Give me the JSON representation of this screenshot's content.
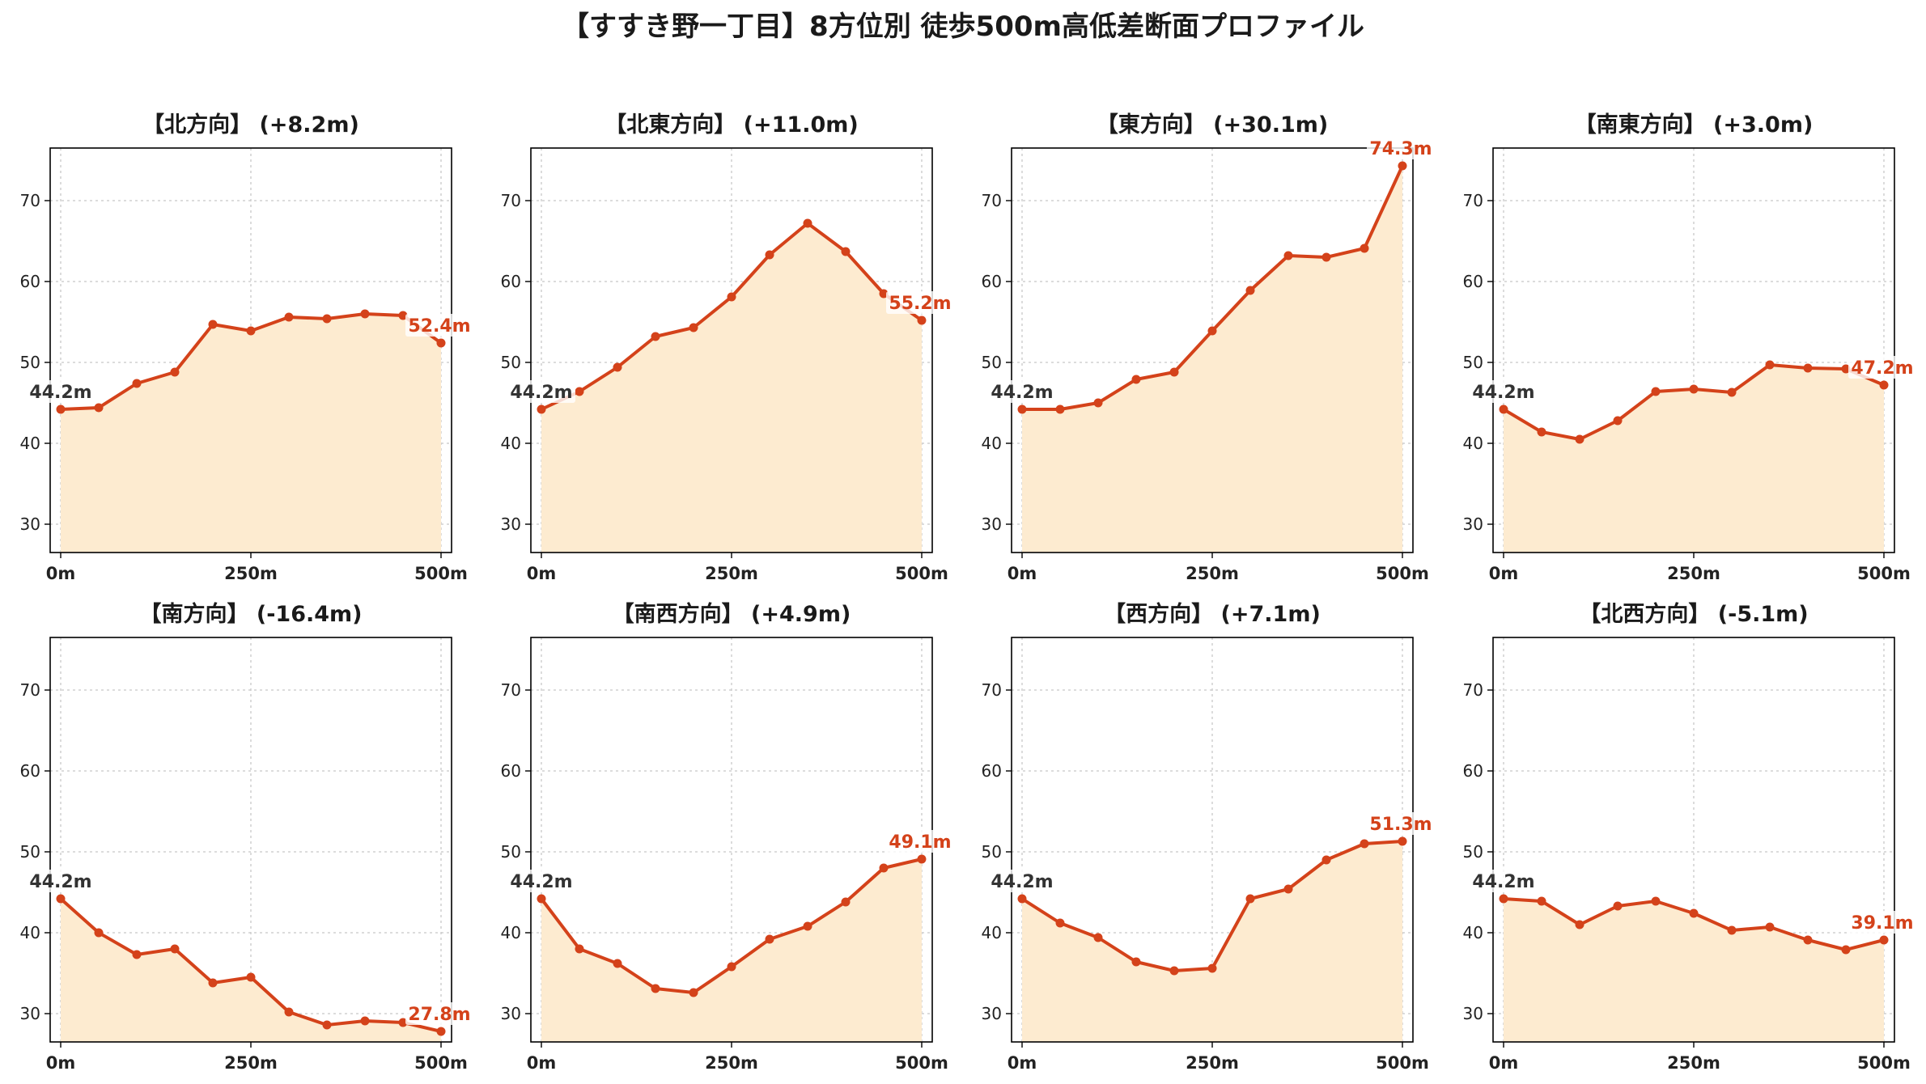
{
  "figure_title": "【すすき野一丁目】8方位別 徒歩500m高低差断面プロファイル",
  "colors": {
    "line": "#d4421a",
    "fill": "#fdebd0",
    "grid": "#c8c8c8",
    "start_label": "#333333",
    "end_label": "#d4421a",
    "label_bg": "#ffffff"
  },
  "chart_data": [
    {
      "type": "area",
      "title": "【北方向】 (+8.2m)",
      "x": [
        0,
        50,
        100,
        150,
        200,
        250,
        300,
        350,
        400,
        450,
        500
      ],
      "values": [
        44.2,
        44.4,
        47.4,
        48.8,
        54.7,
        53.9,
        55.6,
        55.4,
        56.0,
        55.8,
        52.4
      ],
      "start_label": "44.2m",
      "end_label": "52.4m",
      "ylim": [
        26.5,
        76.5
      ],
      "yticks": [
        "30",
        "40",
        "50",
        "60",
        "70"
      ],
      "xticks": [
        "0m",
        "250m",
        "500m"
      ],
      "grid": true
    },
    {
      "type": "area",
      "title": "【北東方向】 (+11.0m)",
      "x": [
        0,
        50,
        100,
        150,
        200,
        250,
        300,
        350,
        400,
        450,
        500
      ],
      "values": [
        44.2,
        46.4,
        49.4,
        53.2,
        54.3,
        58.1,
        63.3,
        67.2,
        63.7,
        58.5,
        55.2
      ],
      "start_label": "44.2m",
      "end_label": "55.2m",
      "ylim": [
        26.5,
        76.5
      ],
      "yticks": [
        "30",
        "40",
        "50",
        "60",
        "70"
      ],
      "xticks": [
        "0m",
        "250m",
        "500m"
      ],
      "grid": true
    },
    {
      "type": "area",
      "title": "【東方向】 (+30.1m)",
      "x": [
        0,
        50,
        100,
        150,
        200,
        250,
        300,
        350,
        400,
        450,
        500
      ],
      "values": [
        44.2,
        44.2,
        45.0,
        47.9,
        48.8,
        53.9,
        58.9,
        63.2,
        63.0,
        64.1,
        74.3
      ],
      "start_label": "44.2m",
      "end_label": "74.3m",
      "ylim": [
        26.5,
        76.5
      ],
      "yticks": [
        "30",
        "40",
        "50",
        "60",
        "70"
      ],
      "xticks": [
        "0m",
        "250m",
        "500m"
      ],
      "grid": true
    },
    {
      "type": "area",
      "title": "【南東方向】 (+3.0m)",
      "x": [
        0,
        50,
        100,
        150,
        200,
        250,
        300,
        350,
        400,
        450,
        500
      ],
      "values": [
        44.2,
        41.4,
        40.5,
        42.8,
        46.4,
        46.7,
        46.3,
        49.7,
        49.3,
        49.2,
        47.2
      ],
      "start_label": "44.2m",
      "end_label": "47.2m",
      "ylim": [
        26.5,
        76.5
      ],
      "yticks": [
        "30",
        "40",
        "50",
        "60",
        "70"
      ],
      "xticks": [
        "0m",
        "250m",
        "500m"
      ],
      "grid": true
    },
    {
      "type": "area",
      "title": "【南方向】 (-16.4m)",
      "x": [
        0,
        50,
        100,
        150,
        200,
        250,
        300,
        350,
        400,
        450,
        500
      ],
      "values": [
        44.2,
        40.0,
        37.3,
        38.0,
        33.8,
        34.5,
        30.2,
        28.6,
        29.1,
        28.9,
        27.8
      ],
      "start_label": "44.2m",
      "end_label": "27.8m",
      "ylim": [
        26.5,
        76.5
      ],
      "yticks": [
        "30",
        "40",
        "50",
        "60",
        "70"
      ],
      "xticks": [
        "0m",
        "250m",
        "500m"
      ],
      "grid": true
    },
    {
      "type": "area",
      "title": "【南西方向】 (+4.9m)",
      "x": [
        0,
        50,
        100,
        150,
        200,
        250,
        300,
        350,
        400,
        450,
        500
      ],
      "values": [
        44.2,
        38.0,
        36.2,
        33.1,
        32.6,
        35.8,
        39.2,
        40.8,
        43.8,
        48.0,
        49.1
      ],
      "start_label": "44.2m",
      "end_label": "49.1m",
      "ylim": [
        26.5,
        76.5
      ],
      "yticks": [
        "30",
        "40",
        "50",
        "60",
        "70"
      ],
      "xticks": [
        "0m",
        "250m",
        "500m"
      ],
      "grid": true
    },
    {
      "type": "area",
      "title": "【西方向】 (+7.1m)",
      "x": [
        0,
        50,
        100,
        150,
        200,
        250,
        300,
        350,
        400,
        450,
        500
      ],
      "values": [
        44.2,
        41.2,
        39.4,
        36.4,
        35.3,
        35.6,
        44.2,
        45.4,
        49.0,
        51.0,
        51.3
      ],
      "start_label": "44.2m",
      "end_label": "51.3m",
      "ylim": [
        26.5,
        76.5
      ],
      "yticks": [
        "30",
        "40",
        "50",
        "60",
        "70"
      ],
      "xticks": [
        "0m",
        "250m",
        "500m"
      ],
      "grid": true
    },
    {
      "type": "area",
      "title": "【北西方向】 (-5.1m)",
      "x": [
        0,
        50,
        100,
        150,
        200,
        250,
        300,
        350,
        400,
        450,
        500
      ],
      "values": [
        44.2,
        43.9,
        41.0,
        43.3,
        43.9,
        42.4,
        40.3,
        40.7,
        39.1,
        37.9,
        39.1
      ],
      "start_label": "44.2m",
      "end_label": "39.1m",
      "ylim": [
        26.5,
        76.5
      ],
      "yticks": [
        "30",
        "40",
        "50",
        "60",
        "70"
      ],
      "xticks": [
        "0m",
        "250m",
        "500m"
      ],
      "grid": true
    }
  ]
}
